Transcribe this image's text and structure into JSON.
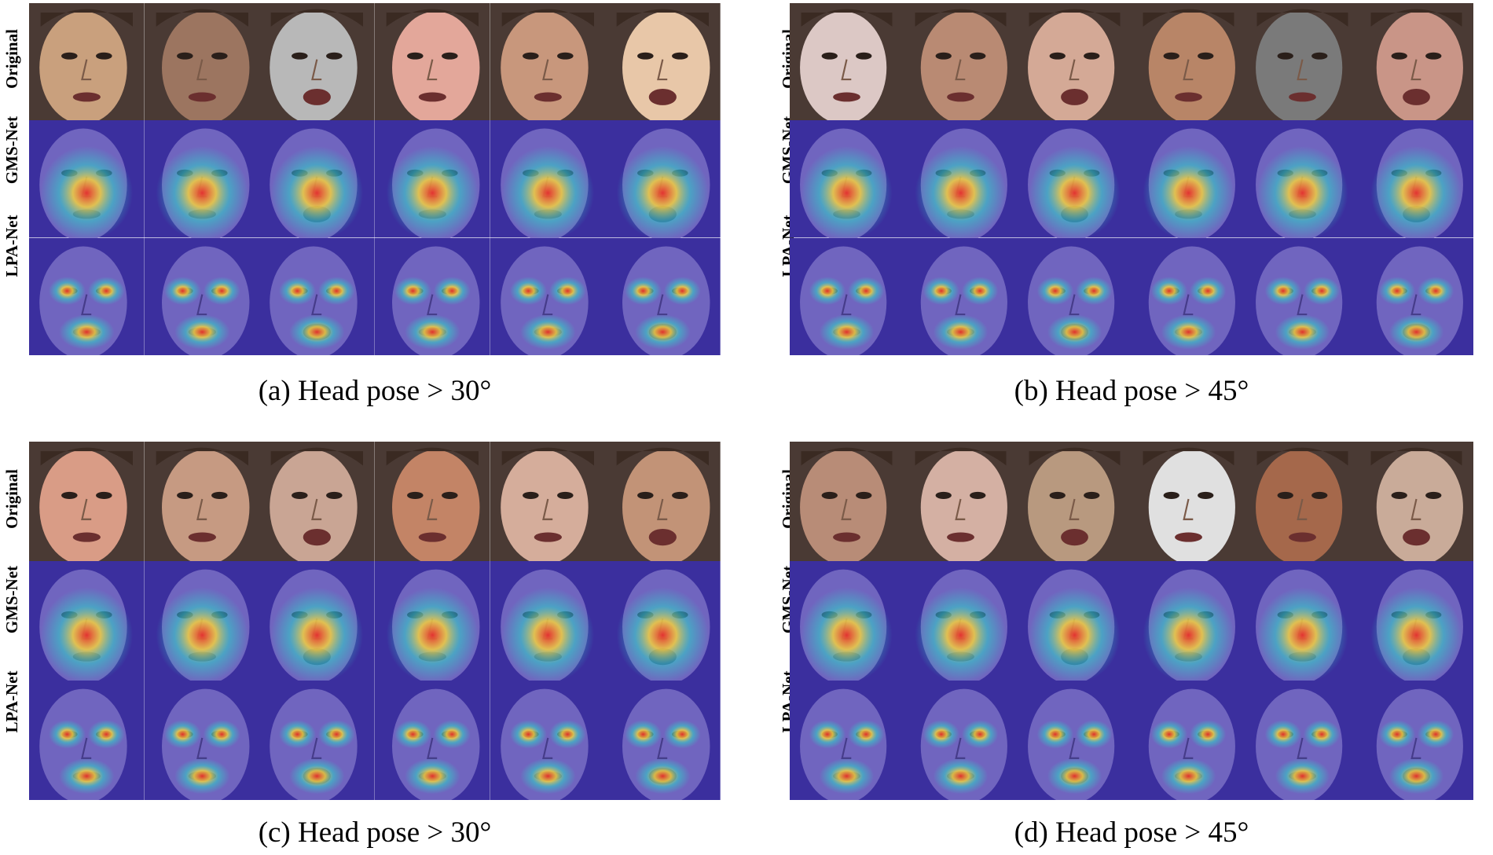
{
  "row_labels": [
    "Original",
    "GMS-Net",
    "LPA-Net"
  ],
  "panels": [
    {
      "id": "a",
      "caption": "(a) Head pose > 30°"
    },
    {
      "id": "b",
      "caption": "(b) Head pose > 45°"
    },
    {
      "id": "c",
      "caption": "(c) Head pose > 30°"
    },
    {
      "id": "d",
      "caption": "(d) Head pose > 45°"
    }
  ],
  "colors": {
    "heat_low": "#3b2f9e",
    "heat_mid": "#2fd3c8",
    "heat_warm": "#f4d03f",
    "heat_high": "#e8312a"
  },
  "skin_tones": {
    "a": [
      "#c9a07d",
      "#9c7560",
      "#b8b8b8",
      "#e3a79a",
      "#c8977c",
      "#e8c7a8"
    ],
    "b": [
      "#dcc8c5",
      "#b98a73",
      "#d4a996",
      "#b88567",
      "#7a7a7a",
      "#c99587"
    ],
    "c": [
      "#d99c86",
      "#c69a82",
      "#c9a594",
      "#c38466",
      "#d5ad9b",
      "#c29377"
    ],
    "d": [
      "#b88c77",
      "#d4b0a3",
      "#b8997f",
      "#e0e0e0",
      "#a5684b",
      "#c9ab99"
    ]
  }
}
